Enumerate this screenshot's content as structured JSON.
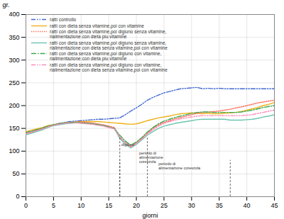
{
  "chart_data": {
    "type": "line",
    "xlabel": "giorni",
    "ylabel": "gr.",
    "x": [
      0,
      1,
      2,
      3,
      4,
      5,
      6,
      7,
      8,
      9,
      10,
      11,
      12,
      13,
      14,
      15,
      16,
      17,
      18,
      19,
      20,
      21,
      22,
      23,
      24,
      25,
      26,
      27,
      28,
      29,
      30,
      31,
      32,
      33,
      34,
      35,
      36,
      37,
      38,
      39,
      40,
      41,
      42,
      43,
      44,
      45
    ],
    "series": [
      {
        "name": "ratti controllo",
        "line_style": "dashdotdot",
        "values": [
          140,
          143,
          147,
          150,
          155,
          158,
          161,
          163,
          165,
          166,
          167,
          168,
          169,
          170,
          170,
          171,
          172,
          173,
          180,
          188,
          195,
          203,
          212,
          218,
          223,
          228,
          231,
          234,
          237,
          238,
          239,
          240,
          237,
          238,
          237,
          238,
          237,
          237,
          237,
          237,
          237,
          237,
          237,
          237,
          237,
          237
        ]
      },
      {
        "name": "ratti con dieta senza vitamine,poi con vitamine",
        "line_style": "solid",
        "values": [
          143,
          146,
          149,
          152,
          156,
          158,
          160,
          162,
          163,
          164,
          165,
          165,
          165,
          165,
          164,
          163,
          162,
          161,
          160,
          159,
          160,
          163,
          167,
          170,
          173,
          175,
          177,
          180,
          182,
          183,
          184,
          183,
          182,
          183,
          182,
          182,
          183,
          184,
          185,
          187,
          190,
          193,
          196,
          200,
          203,
          207
        ]
      },
      {
        "name": "ratti con dieta senza vitamine,poi digiuno senza vitamine,\nrialimentazione con dieta piu vitamine",
        "line_style": "dotted",
        "values": [
          138,
          141,
          145,
          149,
          154,
          158,
          160,
          162,
          163,
          164,
          164,
          163,
          162,
          160,
          158,
          155,
          152,
          130,
          118,
          110,
          118,
          128,
          140,
          150,
          158,
          163,
          167,
          171,
          174,
          177,
          180,
          183,
          185,
          186,
          187,
          188,
          190,
          192,
          195,
          197,
          200,
          203,
          206,
          208,
          210,
          212
        ]
      },
      {
        "name": "ratti con dieta senza vitamine,poi digiuno senza vitamine,\nrialimentazione con dieta senza vitamine,poi con vitamine",
        "line_style": "solid",
        "values": [
          136,
          139,
          143,
          147,
          152,
          156,
          158,
          160,
          161,
          162,
          162,
          161,
          160,
          158,
          156,
          153,
          150,
          128,
          115,
          107,
          115,
          125,
          135,
          143,
          150,
          155,
          158,
          161,
          163,
          165,
          167,
          169,
          170,
          170,
          170,
          170,
          170,
          168,
          168,
          168,
          169,
          170,
          172,
          175,
          177,
          180
        ]
      },
      {
        "name": "ratti con dieta senza vitamine,poi digiuno con vitamine,\nrialimentazione con dieta piu vitamine",
        "line_style": "dashdot",
        "values": [
          141,
          144,
          147,
          151,
          155,
          158,
          160,
          162,
          163,
          163,
          162,
          161,
          160,
          158,
          156,
          153,
          150,
          135,
          122,
          113,
          120,
          130,
          142,
          152,
          160,
          166,
          170,
          174,
          177,
          180,
          183,
          185,
          186,
          186,
          185,
          185,
          185,
          185,
          185,
          186,
          188,
          190,
          193,
          196,
          198,
          200
        ]
      },
      {
        "name": "ratti con dieta senza vitamine,poi digiuno con vitamine,\nrialimentazione con dieta senza vitamine,poi con vitamine",
        "line_style": "dashdotdot",
        "values": [
          139,
          142,
          145,
          149,
          153,
          157,
          159,
          161,
          162,
          162,
          161,
          160,
          159,
          157,
          155,
          152,
          149,
          132,
          118,
          109,
          117,
          127,
          138,
          147,
          155,
          161,
          165,
          168,
          171,
          173,
          175,
          177,
          178,
          178,
          178,
          178,
          178,
          178,
          178,
          178,
          179,
          180,
          183,
          185,
          188,
          190
        ]
      }
    ],
    "vlines": [
      {
        "x": 17,
        "y1": 0,
        "y2": 130
      },
      {
        "x": 22,
        "y1": 0,
        "y2": 130
      },
      {
        "x": 17,
        "y1": 0,
        "y2": 80
      },
      {
        "x": 37,
        "y1": 0,
        "y2": 80
      }
    ],
    "annotations": [
      {
        "text": "digiuno",
        "x": 17.3,
        "y": 118
      },
      {
        "text": "periodo di\nalimentazione\ncoreszola",
        "x": 20.5,
        "y": 100
      },
      {
        "text": "periodo di\nalimentazione coreszola",
        "x": 24.0,
        "y": 76
      }
    ],
    "xlim": [
      0,
      45
    ],
    "ylim": [
      0,
      400
    ],
    "xticks": [
      0,
      5,
      10,
      15,
      20,
      25,
      30,
      35,
      40,
      45
    ],
    "yticks": [
      0,
      50,
      100,
      150,
      200,
      250,
      300,
      350,
      400
    ],
    "grid": true,
    "legend": "upper left"
  }
}
